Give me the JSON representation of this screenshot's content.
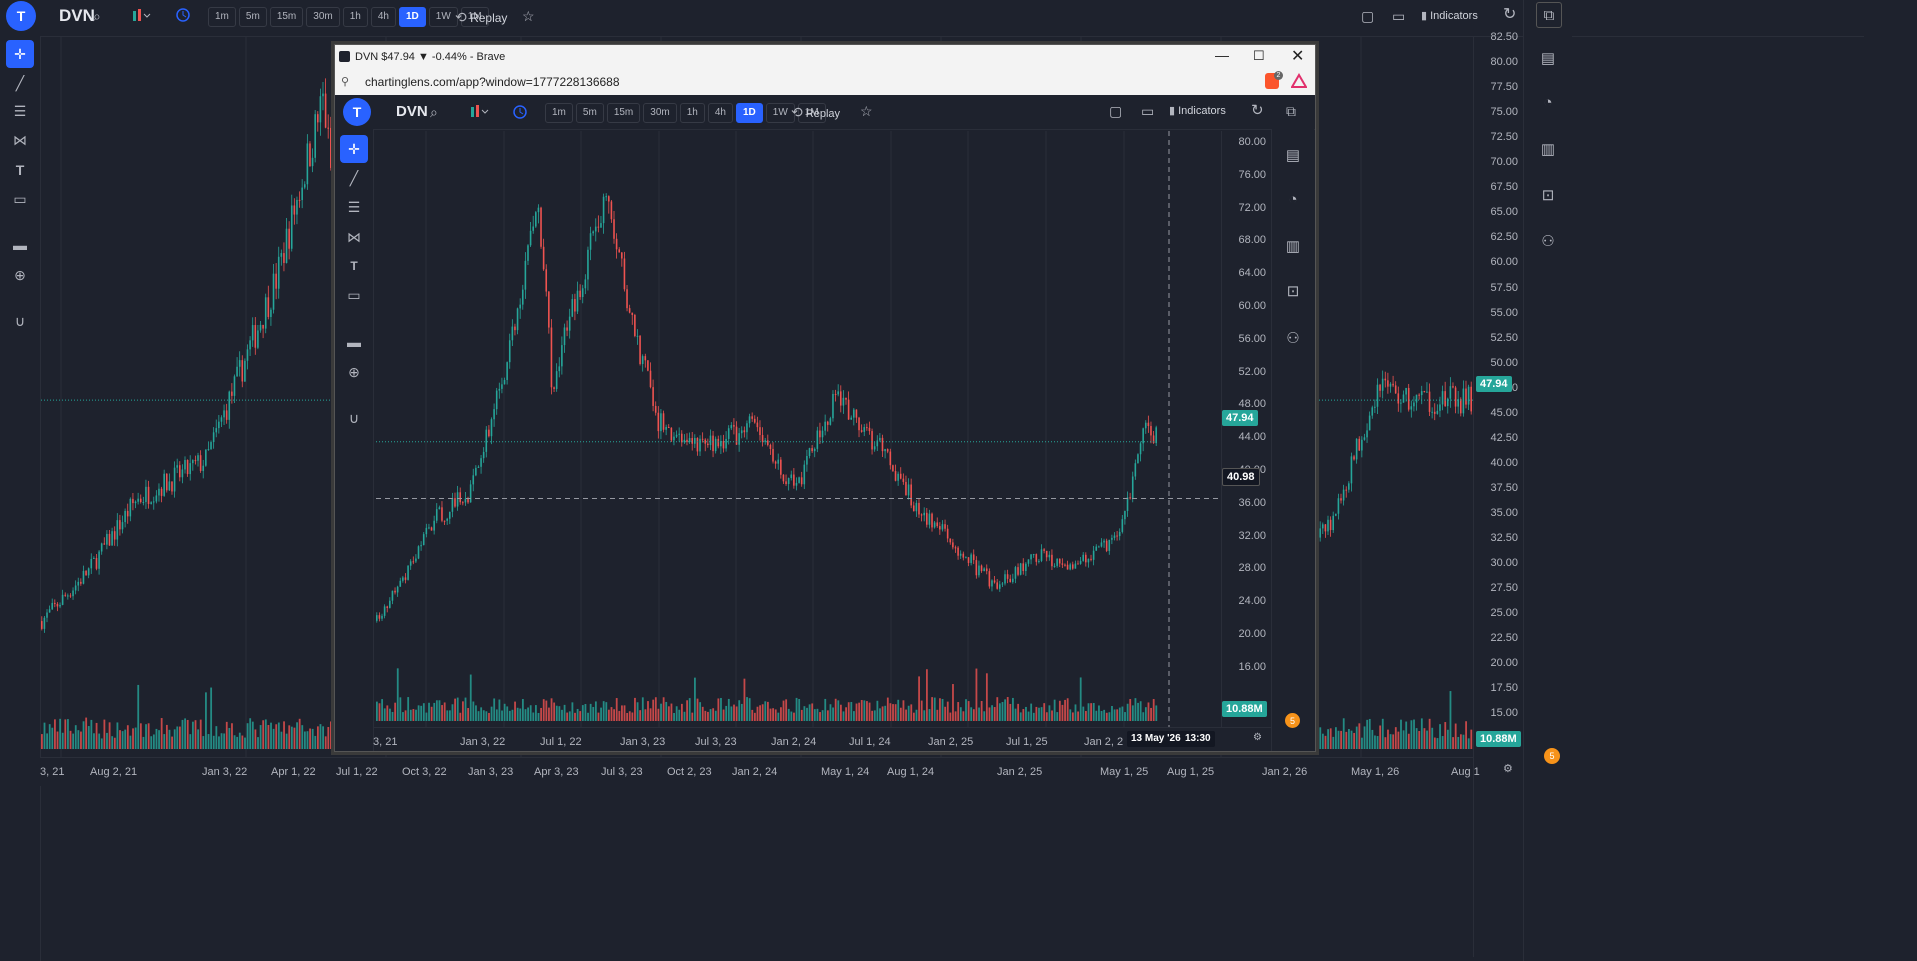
{
  "app": {
    "avatar_letter": "T",
    "symbol": "DVN",
    "timeframes": [
      "1m",
      "5m",
      "15m",
      "30m",
      "1h",
      "4h",
      "1D",
      "1W",
      "1M"
    ],
    "active_timeframe": "1D",
    "replay_label": "Replay",
    "indicators_label": "Indicators",
    "price_ticks": [
      "82.50",
      "80.00",
      "77.50",
      "75.00",
      "72.50",
      "70.00",
      "67.50",
      "65.00",
      "62.50",
      "60.00",
      "57.50",
      "55.00",
      "52.50",
      "50.00",
      "47.50",
      "45.00",
      "42.50",
      "40.00",
      "37.50",
      "35.00",
      "32.50",
      "30.00",
      "27.50",
      "25.00",
      "22.50",
      "20.00",
      "17.50",
      "15.00",
      "12.50"
    ],
    "time_ticks": [
      "3, 21",
      "Aug 2, 21",
      "Jan 3, 22",
      "Apr 1, 22",
      "Jul 1, 22",
      "Oct 3, 22",
      "Jan 3, 23",
      "Apr 3, 23",
      "Jul 3, 23",
      "Oct 2, 23",
      "Jan 2, 24",
      "May 1, 24",
      "Aug 1, 24",
      "Jan 2, 25",
      "May 1, 25",
      "Aug 1, 25",
      "Jan 2, 26",
      "May 1, 26",
      "Aug 1"
    ],
    "last_price": "47.94",
    "volume_label": "10.88M",
    "alert_count": "5",
    "colors": {
      "up": "#26a69a",
      "down": "#ef5350",
      "accent": "#2962ff",
      "bg": "#1e222d"
    }
  },
  "popup": {
    "window_title": "DVN $47.94 ▼ -0.44% - Brave",
    "url": "chartinglens.com/app?window=1777228136688",
    "brave_badge": "2",
    "avatar_letter": "T",
    "symbol": "DVN",
    "timeframes": [
      "1m",
      "5m",
      "15m",
      "30m",
      "1h",
      "4h",
      "1D",
      "1W",
      "1M"
    ],
    "active_timeframe": "1D",
    "replay_label": "Replay",
    "indicators_label": "Indicators",
    "price_ticks": [
      "80.00",
      "76.00",
      "72.00",
      "68.00",
      "64.00",
      "60.00",
      "56.00",
      "52.00",
      "48.00",
      "44.00",
      "40.00",
      "36.00",
      "32.00",
      "28.00",
      "24.00",
      "20.00",
      "16.00"
    ],
    "time_ticks": [
      "3, 21",
      "Jan 3, 22",
      "Jul 1, 22",
      "Jan 3, 23",
      "Jul 3, 23",
      "Jan 2, 24",
      "Jul 1, 24",
      "Jan 2, 25",
      "Jul 1, 25",
      "Jan 2, 2"
    ],
    "last_price": "47.94",
    "crosshair_price": "40.98",
    "crosshair_date": "13 May '26",
    "crosshair_time": "13:30",
    "volume_label": "10.88M",
    "alert_count": "5"
  },
  "chart_data": {
    "type": "candlestick",
    "symbol": "DVN",
    "interval": "1D",
    "approx_close_path": [
      {
        "x": "Jun 2021",
        "y": 26
      },
      {
        "x": "Aug 2021",
        "y": 31
      },
      {
        "x": "Oct 2021",
        "y": 38
      },
      {
        "x": "Jan 2022",
        "y": 42
      },
      {
        "x": "Apr 2022",
        "y": 60
      },
      {
        "x": "Jun 2022",
        "y": 78
      },
      {
        "x": "Jul 2022",
        "y": 55
      },
      {
        "x": "Oct 2022",
        "y": 73
      },
      {
        "x": "Nov 2022",
        "y": 78
      },
      {
        "x": "Jan 2023",
        "y": 62
      },
      {
        "x": "Mar 2023",
        "y": 50
      },
      {
        "x": "Jun 2023",
        "y": 47
      },
      {
        "x": "Oct 2023",
        "y": 50
      },
      {
        "x": "Jan 2024",
        "y": 42
      },
      {
        "x": "Apr 2024",
        "y": 53
      },
      {
        "x": "Jul 2024",
        "y": 48
      },
      {
        "x": "Oct 2024",
        "y": 40
      },
      {
        "x": "Jan 2025",
        "y": 35
      },
      {
        "x": "Apr 2025",
        "y": 30
      },
      {
        "x": "Jul 2025",
        "y": 34
      },
      {
        "x": "Oct 2025",
        "y": 33
      },
      {
        "x": "Jan 2026",
        "y": 36
      },
      {
        "x": "Mar 2026",
        "y": 50
      },
      {
        "x": "Apr 2026",
        "y": 47.94
      }
    ],
    "last_price": 47.94,
    "last_volume": "10.88M"
  }
}
